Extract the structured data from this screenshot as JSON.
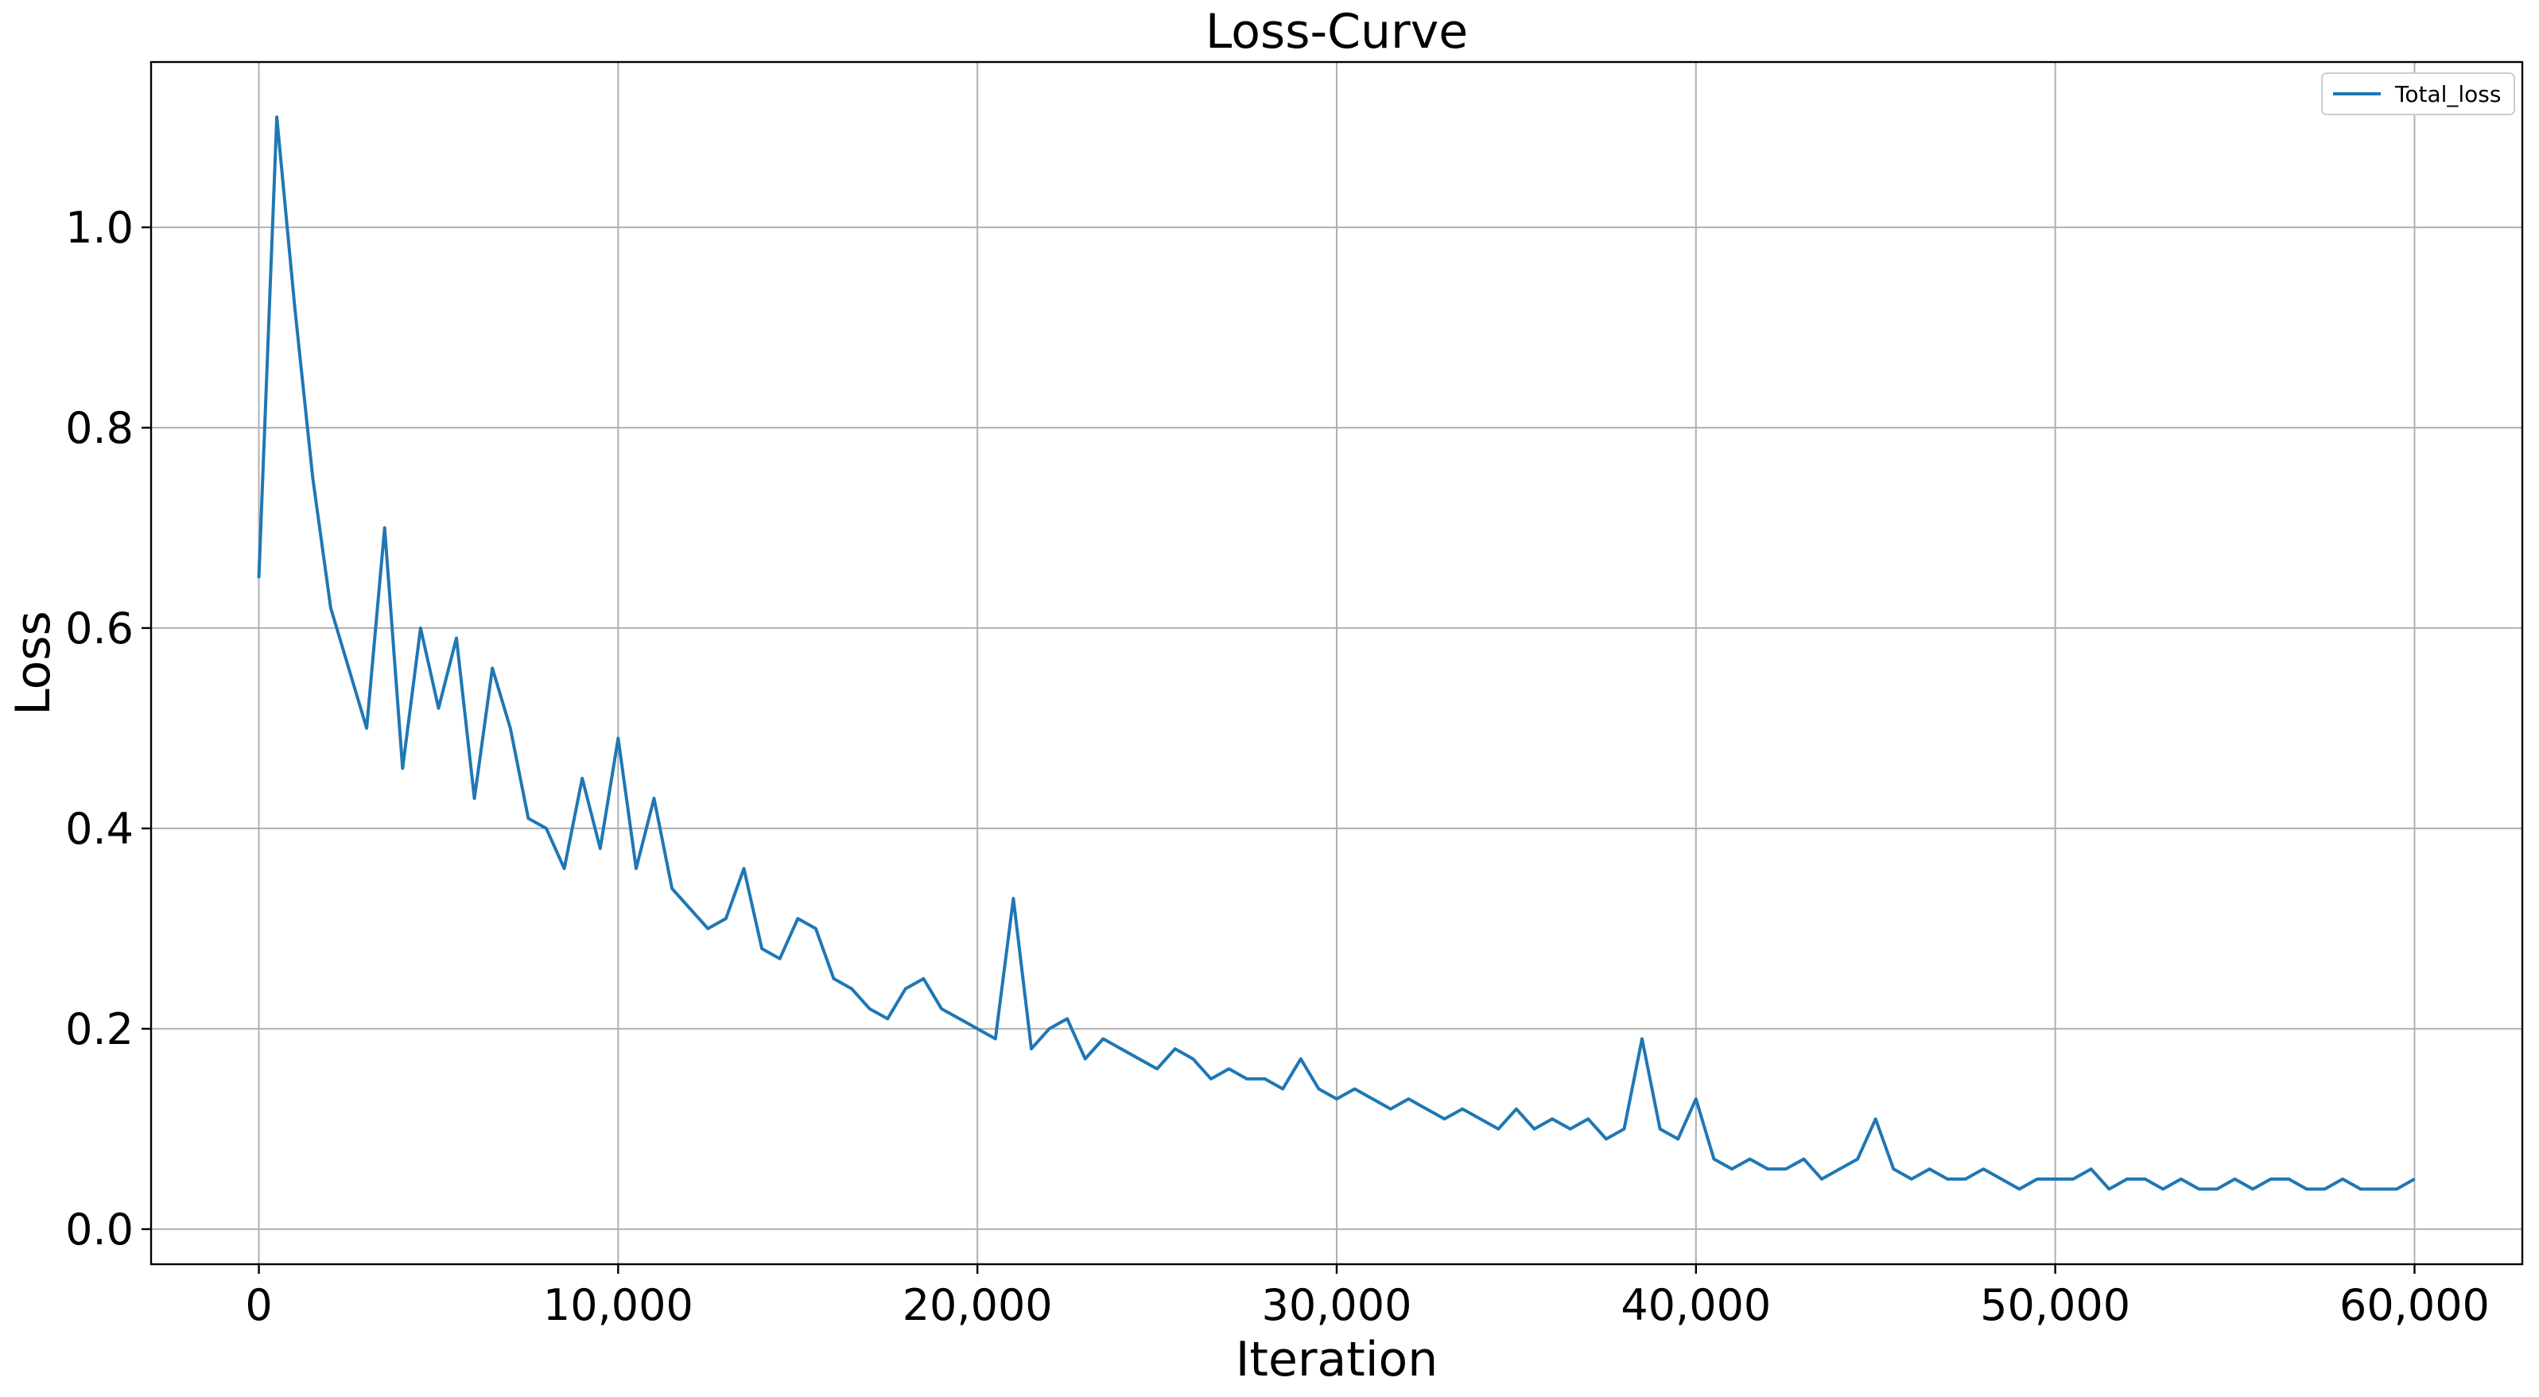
{
  "chart_data": {
    "type": "line",
    "title": "Loss-Curve",
    "xlabel": "Iteration",
    "ylabel": "Loss",
    "xlim": [
      -3000,
      63000
    ],
    "ylim": [
      -0.035,
      1.165
    ],
    "xticks": [
      0,
      10000,
      20000,
      30000,
      40000,
      50000,
      60000
    ],
    "xtick_labels": [
      "0",
      "10,000",
      "20,000",
      "30,000",
      "40,000",
      "50,000",
      "60,000"
    ],
    "yticks": [
      0.0,
      0.2,
      0.4,
      0.6,
      0.8,
      1.0
    ],
    "ytick_labels": [
      "0.0",
      "0.2",
      "0.4",
      "0.6",
      "0.8",
      "1.0"
    ],
    "grid": true,
    "legend_position": "top-right",
    "series": [
      {
        "name": "Total_loss",
        "color": "#1f77b4",
        "x": [
          0,
          500,
          1000,
          1500,
          2000,
          2500,
          3000,
          3500,
          4000,
          4500,
          5000,
          5500,
          6000,
          6500,
          7000,
          7500,
          8000,
          8500,
          9000,
          9500,
          10000,
          10500,
          11000,
          11500,
          12000,
          12500,
          13000,
          13500,
          14000,
          14500,
          15000,
          15500,
          16000,
          16500,
          17000,
          17500,
          18000,
          18500,
          19000,
          19500,
          20000,
          20500,
          21000,
          21500,
          22000,
          22500,
          23000,
          23500,
          24000,
          24500,
          25000,
          25500,
          26000,
          26500,
          27000,
          27500,
          28000,
          28500,
          29000,
          29500,
          30000,
          30500,
          31000,
          31500,
          32000,
          32500,
          33000,
          33500,
          34000,
          34500,
          35000,
          35500,
          36000,
          36500,
          37000,
          37500,
          38000,
          38500,
          39000,
          39500,
          40000,
          40500,
          41000,
          41500,
          42000,
          42500,
          43000,
          43500,
          44000,
          44500,
          45000,
          45500,
          46000,
          46500,
          47000,
          47500,
          48000,
          48500,
          49000,
          49500,
          50000,
          50500,
          51000,
          51500,
          52000,
          52500,
          53000,
          53500,
          54000,
          54500,
          55000,
          55500,
          56000,
          56500,
          57000,
          57500,
          58000,
          58500,
          59000,
          59500,
          60000
        ],
        "y": [
          0.65,
          1.11,
          0.92,
          0.75,
          0.62,
          0.56,
          0.5,
          0.7,
          0.46,
          0.6,
          0.52,
          0.59,
          0.43,
          0.56,
          0.5,
          0.41,
          0.4,
          0.36,
          0.45,
          0.38,
          0.49,
          0.36,
          0.43,
          0.34,
          0.32,
          0.3,
          0.31,
          0.36,
          0.28,
          0.27,
          0.31,
          0.3,
          0.25,
          0.24,
          0.22,
          0.21,
          0.24,
          0.25,
          0.22,
          0.21,
          0.2,
          0.19,
          0.33,
          0.18,
          0.2,
          0.21,
          0.17,
          0.19,
          0.18,
          0.17,
          0.16,
          0.18,
          0.17,
          0.15,
          0.16,
          0.15,
          0.15,
          0.14,
          0.17,
          0.14,
          0.13,
          0.14,
          0.13,
          0.12,
          0.13,
          0.12,
          0.11,
          0.12,
          0.11,
          0.1,
          0.12,
          0.1,
          0.11,
          0.1,
          0.11,
          0.09,
          0.1,
          0.19,
          0.1,
          0.09,
          0.13,
          0.07,
          0.06,
          0.07,
          0.06,
          0.06,
          0.07,
          0.05,
          0.06,
          0.07,
          0.11,
          0.06,
          0.05,
          0.06,
          0.05,
          0.05,
          0.06,
          0.05,
          0.04,
          0.05,
          0.05,
          0.05,
          0.06,
          0.04,
          0.05,
          0.05,
          0.04,
          0.05,
          0.04,
          0.04,
          0.05,
          0.04,
          0.05,
          0.05,
          0.04,
          0.04,
          0.05,
          0.04,
          0.04,
          0.04,
          0.05
        ]
      }
    ]
  }
}
